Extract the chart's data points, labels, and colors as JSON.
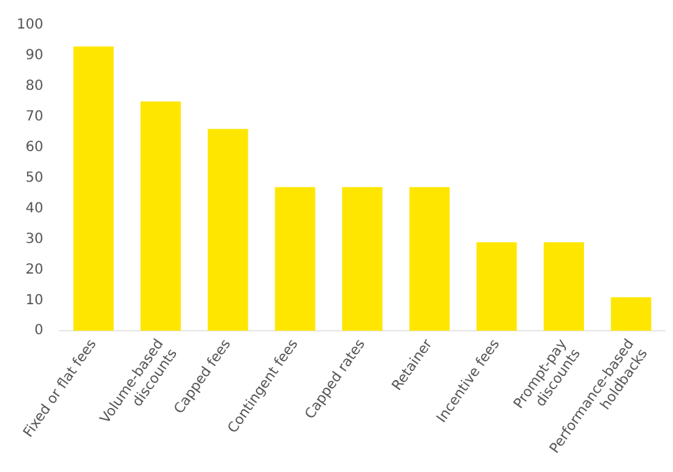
{
  "chart_data": {
    "type": "bar",
    "categories": [
      "Fixed or flat fees",
      "Volume-based discounts",
      "Capped fees",
      "Contingent fees",
      "Capped rates",
      "Retainer",
      "Incentive fees",
      "Prompt-pay discounts",
      "Performance-based holdbacks"
    ],
    "values": [
      93,
      75,
      66,
      47,
      47,
      47,
      29,
      29,
      11
    ],
    "color": "#ffe600",
    "ylim": [
      0,
      100
    ],
    "yticks": [
      0,
      10,
      20,
      30,
      40,
      50,
      60,
      70,
      80,
      90,
      100
    ],
    "grid": false,
    "legend": false
  }
}
